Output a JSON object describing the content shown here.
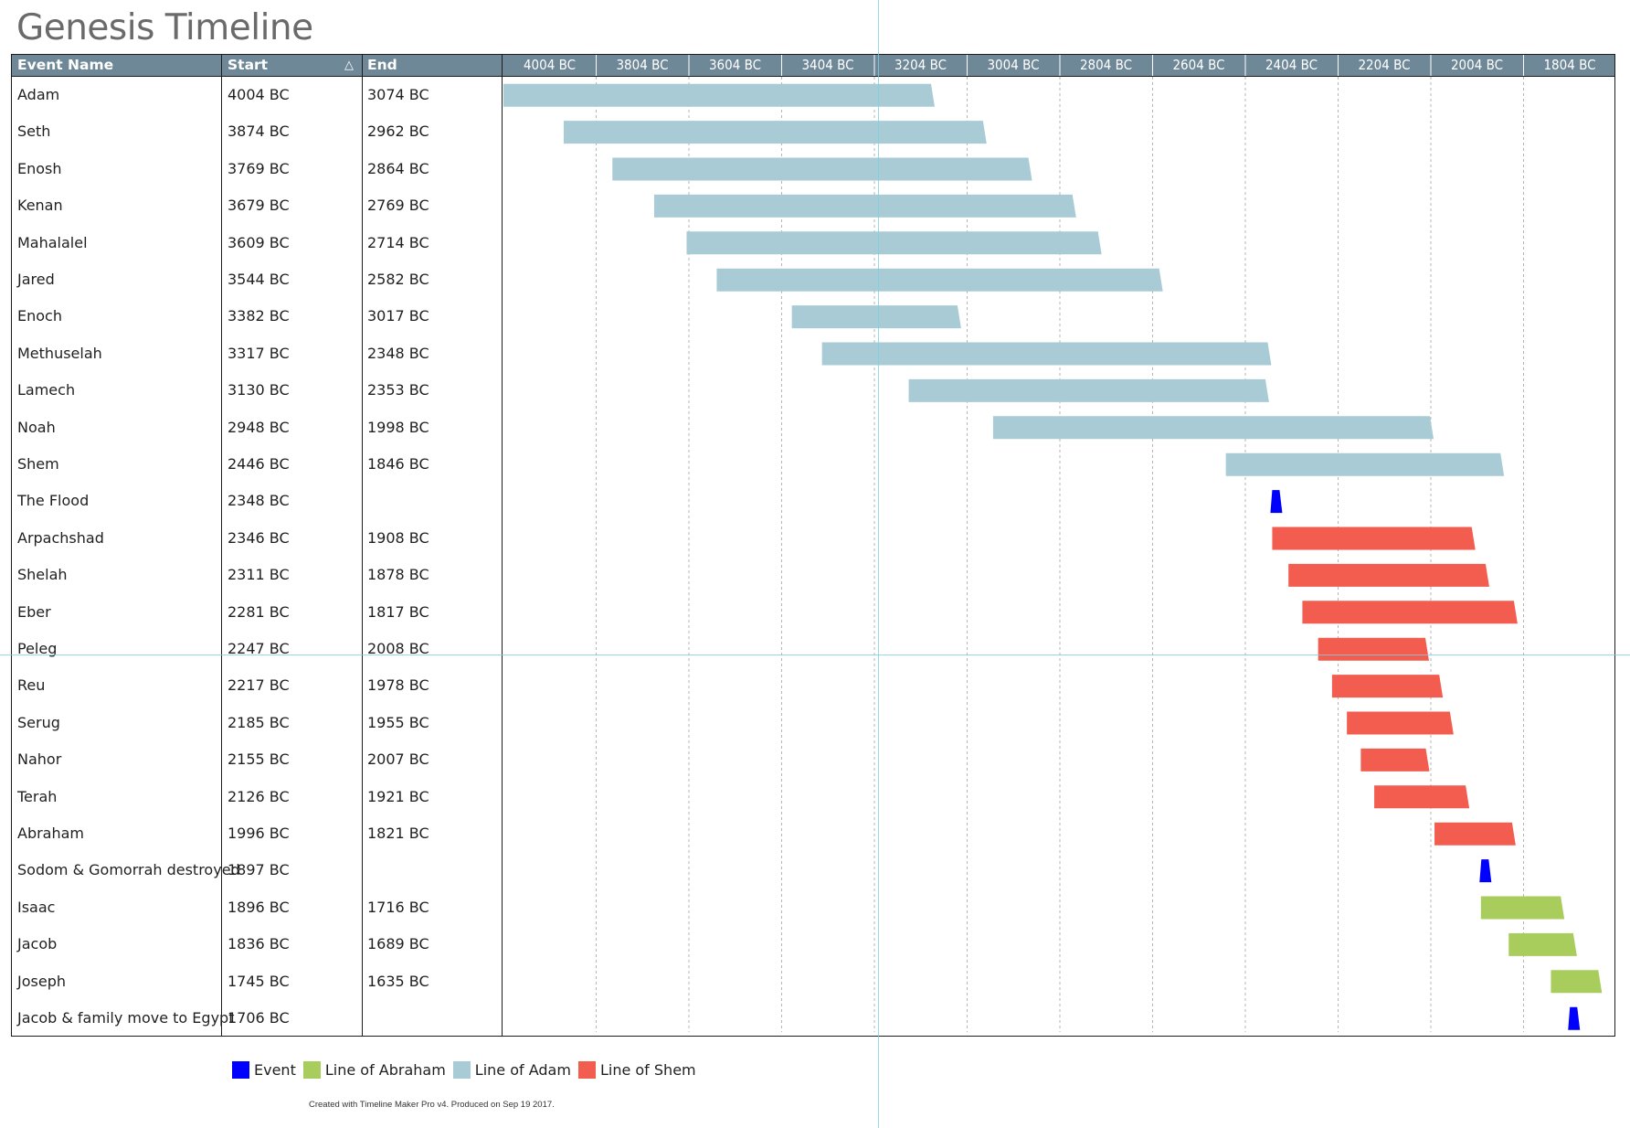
{
  "title": "Genesis Timeline",
  "columns": {
    "event_name": "Event Name",
    "start": "Start",
    "end": "End",
    "sort_indicator": "△"
  },
  "legend": [
    {
      "label": "Event",
      "color": "#0000ff"
    },
    {
      "label": "Line of Abraham",
      "color": "#a8cd5c"
    },
    {
      "label": "Line of Adam",
      "color": "#a9cbd6"
    },
    {
      "label": "Line of Shem",
      "color": "#f25d4f"
    }
  ],
  "footer": "Created with Timeline Maker Pro v4. Produced on Sep 19 2017.",
  "chart_data": {
    "type": "gantt",
    "title": "Genesis Timeline",
    "axis": {
      "min": 4004,
      "max": 1604,
      "direction": "descending years BC",
      "ticks": [
        "4004 BC",
        "3804 BC",
        "3604 BC",
        "3404 BC",
        "3204 BC",
        "3004 BC",
        "2804 BC",
        "2604 BC",
        "2404 BC",
        "2204 BC",
        "2004 BC",
        "1804 BC"
      ],
      "grid": true
    },
    "legend_placement": "bottom-left",
    "rows": [
      {
        "name": "Adam",
        "start": "4004 BC",
        "end": "3074 BC",
        "start_year": 4004,
        "end_year": 3074,
        "category": "Line of Adam"
      },
      {
        "name": "Seth",
        "start": "3874 BC",
        "end": "2962 BC",
        "start_year": 3874,
        "end_year": 2962,
        "category": "Line of Adam"
      },
      {
        "name": "Enosh",
        "start": "3769 BC",
        "end": "2864 BC",
        "start_year": 3769,
        "end_year": 2864,
        "category": "Line of Adam"
      },
      {
        "name": "Kenan",
        "start": "3679 BC",
        "end": "2769 BC",
        "start_year": 3679,
        "end_year": 2769,
        "category": "Line of Adam"
      },
      {
        "name": "Mahalalel",
        "start": "3609 BC",
        "end": "2714 BC",
        "start_year": 3609,
        "end_year": 2714,
        "category": "Line of Adam"
      },
      {
        "name": "Jared",
        "start": "3544 BC",
        "end": "2582 BC",
        "start_year": 3544,
        "end_year": 2582,
        "category": "Line of Adam"
      },
      {
        "name": "Enoch",
        "start": "3382 BC",
        "end": "3017 BC",
        "start_year": 3382,
        "end_year": 3017,
        "category": "Line of Adam"
      },
      {
        "name": "Methuselah",
        "start": "3317 BC",
        "end": "2348 BC",
        "start_year": 3317,
        "end_year": 2348,
        "category": "Line of Adam"
      },
      {
        "name": "Lamech",
        "start": "3130 BC",
        "end": "2353 BC",
        "start_year": 3130,
        "end_year": 2353,
        "category": "Line of Adam"
      },
      {
        "name": "Noah",
        "start": "2948 BC",
        "end": "1998 BC",
        "start_year": 2948,
        "end_year": 1998,
        "category": "Line of Adam"
      },
      {
        "name": "Shem",
        "start": "2446 BC",
        "end": "1846 BC",
        "start_year": 2446,
        "end_year": 1846,
        "category": "Line of Adam"
      },
      {
        "name": "The Flood",
        "start": "2348 BC",
        "end": "",
        "start_year": 2348,
        "end_year": null,
        "category": "Event"
      },
      {
        "name": "Arpachshad",
        "start": "2346 BC",
        "end": "1908 BC",
        "start_year": 2346,
        "end_year": 1908,
        "category": "Line of Shem"
      },
      {
        "name": "Shelah",
        "start": "2311 BC",
        "end": "1878 BC",
        "start_year": 2311,
        "end_year": 1878,
        "category": "Line of Shem"
      },
      {
        "name": "Eber",
        "start": "2281 BC",
        "end": "1817 BC",
        "start_year": 2281,
        "end_year": 1817,
        "category": "Line of Shem"
      },
      {
        "name": "Peleg",
        "start": "2247 BC",
        "end": "2008 BC",
        "start_year": 2247,
        "end_year": 2008,
        "category": "Line of Shem"
      },
      {
        "name": "Reu",
        "start": "2217 BC",
        "end": "1978 BC",
        "start_year": 2217,
        "end_year": 1978,
        "category": "Line of Shem"
      },
      {
        "name": "Serug",
        "start": "2185 BC",
        "end": "1955 BC",
        "start_year": 2185,
        "end_year": 1955,
        "category": "Line of Shem"
      },
      {
        "name": "Nahor",
        "start": "2155 BC",
        "end": "2007 BC",
        "start_year": 2155,
        "end_year": 2007,
        "category": "Line of Shem"
      },
      {
        "name": "Terah",
        "start": "2126 BC",
        "end": "1921 BC",
        "start_year": 2126,
        "end_year": 1921,
        "category": "Line of Shem"
      },
      {
        "name": "Abraham",
        "start": "1996 BC",
        "end": "1821 BC",
        "start_year": 1996,
        "end_year": 1821,
        "category": "Line of Shem"
      },
      {
        "name": "Sodom & Gomorrah destroyed",
        "start": "1897 BC",
        "end": "",
        "start_year": 1897,
        "end_year": null,
        "category": "Event"
      },
      {
        "name": "Isaac",
        "start": "1896 BC",
        "end": "1716 BC",
        "start_year": 1896,
        "end_year": 1716,
        "category": "Line of Abraham"
      },
      {
        "name": "Jacob",
        "start": "1836 BC",
        "end": "1689 BC",
        "start_year": 1836,
        "end_year": 1689,
        "category": "Line of Abraham"
      },
      {
        "name": "Joseph",
        "start": "1745 BC",
        "end": "1635 BC",
        "start_year": 1745,
        "end_year": 1635,
        "category": "Line of Abraham"
      },
      {
        "name": "Jacob & family move to Egypt",
        "start": "1706 BC",
        "end": "",
        "start_year": 1706,
        "end_year": null,
        "category": "Event"
      }
    ]
  }
}
